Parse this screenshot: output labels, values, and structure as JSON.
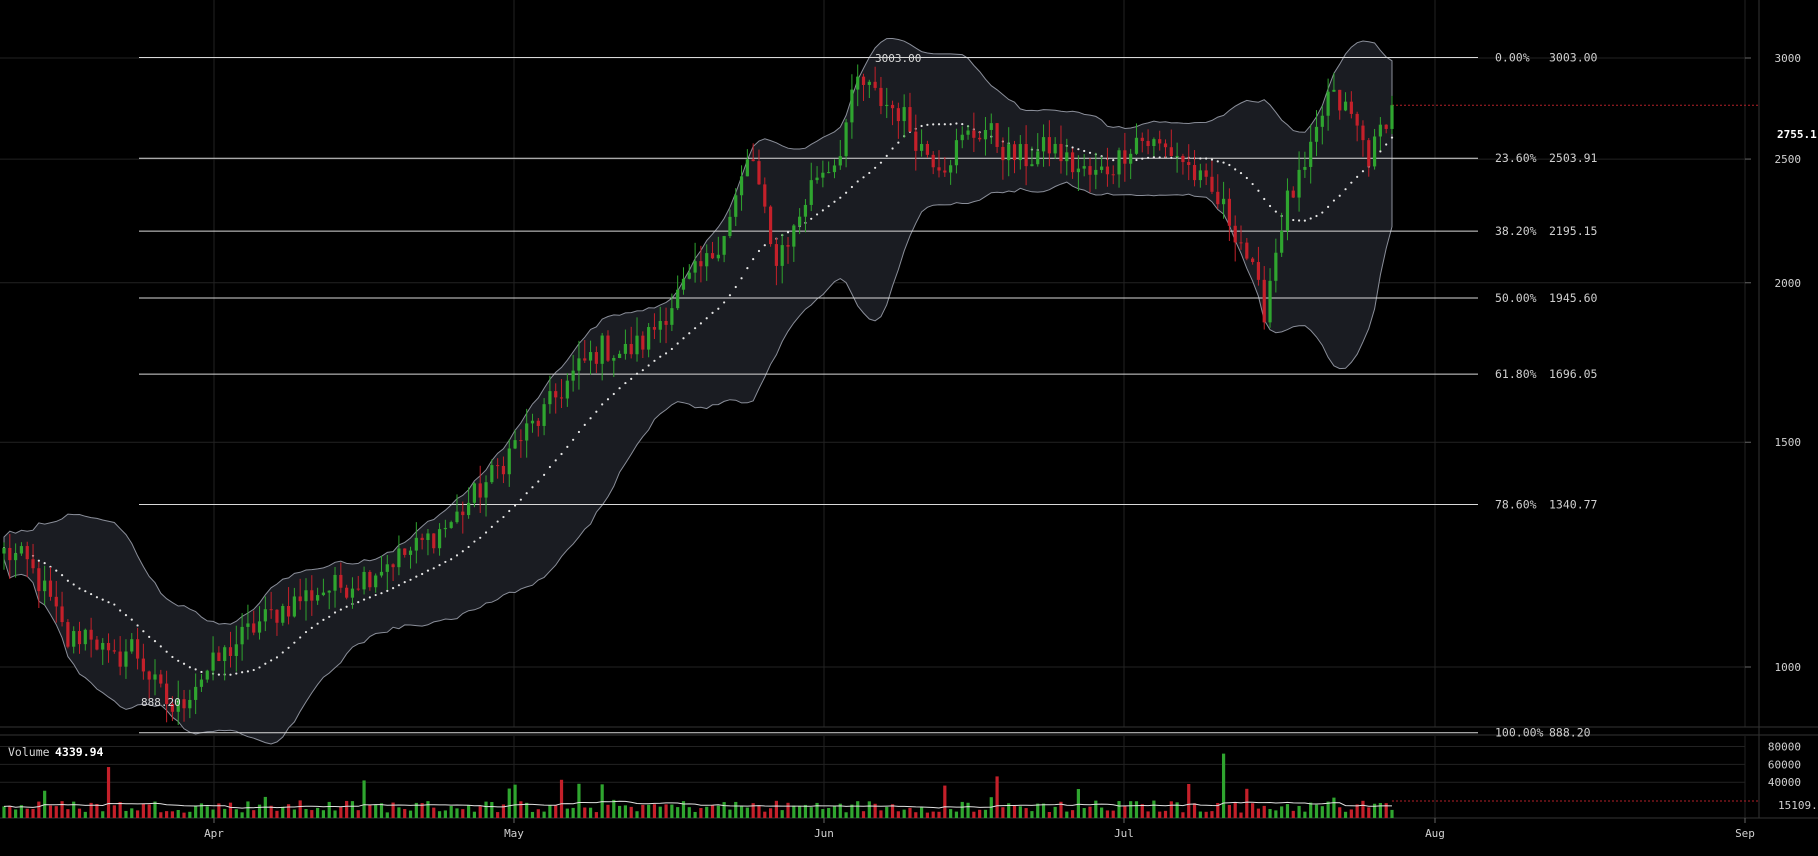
{
  "chart_data": {
    "type": "candlestick",
    "scale": "log",
    "ylim": [
      850,
      3150
    ],
    "price_ticks": [
      1000,
      1500,
      2000,
      2500,
      3000
    ],
    "current_price": {
      "label": "2755.1",
      "value": 2755.1
    },
    "x_labels": [
      "Apr",
      "May",
      "Jun",
      "Jul",
      "Aug",
      "Sep"
    ],
    "high_annotation": {
      "label": "3003.00",
      "value": 3003.0
    },
    "low_annotation": {
      "label": "888.20",
      "value": 888.2
    },
    "fibonacci_levels": [
      {
        "pct": "0.00%",
        "value_label": "3003.00",
        "value": 3003.0
      },
      {
        "pct": "23.60%",
        "value_label": "2503.91",
        "value": 2503.91
      },
      {
        "pct": "38.20%",
        "value_label": "2195.15",
        "value": 2195.15
      },
      {
        "pct": "50.00%",
        "value_label": "1945.60",
        "value": 1945.6
      },
      {
        "pct": "61.80%",
        "value_label": "1696.05",
        "value": 1696.05
      },
      {
        "pct": "78.60%",
        "value_label": "1340.77",
        "value": 1340.77
      },
      {
        "pct": "100.00%",
        "value_label": "888.20",
        "value": 888.2
      }
    ],
    "price_anchors": [
      1230,
      1210,
      1140,
      1045,
      1070,
      1005,
      1040,
      970,
      920,
      975,
      1010,
      1050,
      1085,
      1110,
      1135,
      1150,
      1160,
      1180,
      1210,
      1230,
      1265,
      1300,
      1360,
      1420,
      1500,
      1560,
      1640,
      1720,
      1780,
      1760,
      1800,
      1900,
      2000,
      2080,
      2250,
      2530,
      2080,
      2200,
      2430,
      2500,
      2880,
      2780,
      2720,
      2550,
      2480,
      2600,
      2640,
      2520,
      2500,
      2560,
      2470,
      2420,
      2480,
      2600,
      2560,
      2520,
      2400,
      2300,
      2150,
      1900,
      2300,
      2450,
      2800,
      2720,
      2500,
      2780
    ],
    "volume": {
      "title": "Volume",
      "value_label": "4339.94",
      "ticks": [
        80000,
        60000,
        40000
      ],
      "avg_label": "15109.",
      "max": 85000
    },
    "colors": {
      "up": "#2fa52f",
      "down": "#c4202a",
      "band_fill": "#1a1c22",
      "band_line": "#8a8e99",
      "fib_line": "#d9d9d9",
      "grid": "#222222"
    }
  }
}
